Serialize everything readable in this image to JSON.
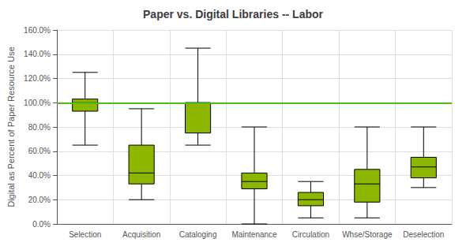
{
  "chart_data": {
    "type": "boxplot",
    "title": "Paper vs. Digital Libraries -- Labor",
    "ylabel": "Digital as Percent of Paper Resource Use",
    "categories": [
      "Selection",
      "Acquisition",
      "Cataloging",
      "Maintenance",
      "Circulation",
      "Whse/Storage",
      "Deselection"
    ],
    "values": [
      [
        65,
        93,
        100,
        103,
        125
      ],
      [
        20,
        33,
        42,
        65,
        95
      ],
      [
        65,
        75,
        100,
        100,
        145
      ],
      [
        0,
        29,
        35,
        42,
        80
      ],
      [
        5,
        15,
        20,
        26,
        35
      ],
      [
        5,
        18,
        33,
        45,
        80
      ],
      [
        30,
        38,
        47,
        55,
        80
      ]
    ],
    "color": "#8DB600",
    "reference_line": {
      "y": 100,
      "color": "#4CBB17"
    },
    "ylim": [
      0,
      160
    ],
    "yticks": [
      {
        "value": 0,
        "label": "0.0%"
      },
      {
        "value": 20,
        "label": "20.0%"
      },
      {
        "value": 40,
        "label": "40.0%"
      },
      {
        "value": 60,
        "label": "60.0%"
      },
      {
        "value": 80,
        "label": "80.0%"
      },
      {
        "value": 100,
        "label": "100.0%"
      },
      {
        "value": 120,
        "label": "120.0%"
      },
      {
        "value": 140,
        "label": "140.0%"
      },
      {
        "value": 160,
        "label": "160.0%"
      }
    ],
    "grid": true
  }
}
